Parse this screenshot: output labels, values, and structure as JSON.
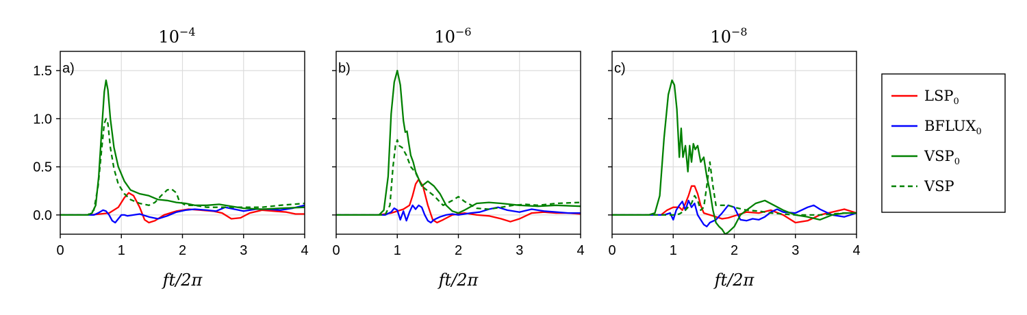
{
  "colors": {
    "LSP0": "#ff0000",
    "BFLUX0": "#0000ff",
    "VSP0": "#008000",
    "VSP": "#008000"
  },
  "legend": {
    "entries": [
      {
        "key": "LSP0",
        "base": "LSP",
        "sub": "0",
        "style": "solid"
      },
      {
        "key": "BFLUX0",
        "base": "BFLUX",
        "sub": "0",
        "style": "solid"
      },
      {
        "key": "VSP0",
        "base": "VSP",
        "sub": "0",
        "style": "solid"
      },
      {
        "key": "VSP",
        "base": "VSP",
        "sub": "",
        "style": "dashed"
      }
    ]
  },
  "chart_data": [
    {
      "type": "line",
      "panel_label": "a)",
      "title": "10",
      "title_exponent": "−4",
      "xlabel": "ft/2π",
      "ylabel": "",
      "xlim": [
        0,
        4
      ],
      "ylim": [
        -0.2,
        1.7
      ],
      "xticks": [
        "0",
        "1",
        "2",
        "3",
        "4"
      ],
      "yticks": [
        "0.0",
        "0.5",
        "1.0",
        "1.5"
      ],
      "grid": true,
      "series": [
        {
          "key": "LSP0",
          "x": [
            0,
            0.5,
            0.8,
            0.95,
            1.05,
            1.12,
            1.2,
            1.3,
            1.38,
            1.45,
            1.55,
            1.7,
            1.9,
            2.1,
            2.3,
            2.5,
            2.65,
            2.8,
            2.95,
            3.1,
            3.3,
            3.5,
            3.7,
            3.85,
            4.0
          ],
          "y": [
            0,
            0,
            0.02,
            0.08,
            0.18,
            0.23,
            0.2,
            0.08,
            -0.05,
            -0.08,
            -0.06,
            0.0,
            0.04,
            0.06,
            0.05,
            0.04,
            0.02,
            -0.04,
            -0.03,
            0.02,
            0.05,
            0.04,
            0.03,
            0.01,
            0.01
          ]
        },
        {
          "key": "BFLUX0",
          "x": [
            0,
            0.55,
            0.62,
            0.7,
            0.75,
            0.8,
            0.85,
            0.9,
            0.95,
            1.0,
            1.05,
            1.1,
            1.2,
            1.3,
            1.45,
            1.6,
            1.75,
            1.9,
            2.05,
            2.2,
            2.4,
            2.55,
            2.7,
            2.85,
            3.0,
            3.2,
            3.4,
            3.6,
            3.8,
            4.0
          ],
          "y": [
            0,
            0,
            0.02,
            0.05,
            0.04,
            0.0,
            -0.06,
            -0.08,
            -0.04,
            0.0,
            0.0,
            -0.01,
            0.0,
            0.01,
            -0.02,
            -0.04,
            -0.01,
            0.03,
            0.05,
            0.06,
            0.05,
            0.04,
            0.08,
            0.06,
            0.04,
            0.06,
            0.06,
            0.05,
            0.07,
            0.1
          ]
        },
        {
          "key": "VSP0",
          "x": [
            0,
            0.45,
            0.52,
            0.58,
            0.63,
            0.68,
            0.72,
            0.75,
            0.78,
            0.82,
            0.88,
            0.95,
            1.05,
            1.15,
            1.3,
            1.45,
            1.6,
            1.75,
            1.9,
            2.05,
            2.2,
            2.4,
            2.6,
            2.8,
            3.0,
            3.3,
            3.6,
            4.0
          ],
          "y": [
            0,
            0.0,
            0.02,
            0.1,
            0.4,
            0.9,
            1.28,
            1.4,
            1.3,
            1.0,
            0.7,
            0.5,
            0.35,
            0.26,
            0.22,
            0.2,
            0.16,
            0.15,
            0.13,
            0.12,
            0.1,
            0.1,
            0.11,
            0.09,
            0.07,
            0.06,
            0.07,
            0.08
          ]
        },
        {
          "key": "VSP",
          "x": [
            0,
            0.45,
            0.55,
            0.62,
            0.68,
            0.72,
            0.75,
            0.78,
            0.82,
            0.88,
            0.95,
            1.05,
            1.15,
            1.3,
            1.45,
            1.55,
            1.65,
            1.75,
            1.82,
            1.9,
            1.95,
            2.05,
            2.2,
            2.4,
            2.6,
            2.8,
            3.0,
            3.3,
            3.6,
            4.0
          ],
          "y": [
            0,
            0.0,
            0.05,
            0.3,
            0.7,
            0.95,
            1.0,
            0.95,
            0.7,
            0.48,
            0.32,
            0.22,
            0.16,
            0.12,
            0.1,
            0.13,
            0.2,
            0.26,
            0.27,
            0.23,
            0.14,
            0.1,
            0.1,
            0.08,
            0.08,
            0.08,
            0.08,
            0.08,
            0.1,
            0.12
          ]
        }
      ]
    },
    {
      "type": "line",
      "panel_label": "b)",
      "title": "10",
      "title_exponent": "−6",
      "xlabel": "ft/2π",
      "ylabel": "",
      "xlim": [
        0,
        4
      ],
      "ylim": [
        -0.2,
        1.7
      ],
      "xticks": [
        "0",
        "1",
        "2",
        "3",
        "4"
      ],
      "yticks": [],
      "grid": true,
      "series": [
        {
          "key": "LSP0",
          "x": [
            0,
            0.7,
            0.9,
            1.0,
            1.1,
            1.2,
            1.25,
            1.3,
            1.35,
            1.42,
            1.5,
            1.58,
            1.65,
            1.75,
            1.9,
            2.1,
            2.3,
            2.5,
            2.7,
            2.85,
            3.0,
            3.2,
            3.4,
            3.6,
            3.8,
            4.0
          ],
          "y": [
            0,
            0,
            0.02,
            0.04,
            0.06,
            0.1,
            0.2,
            0.32,
            0.37,
            0.3,
            0.1,
            -0.05,
            -0.08,
            -0.05,
            0.0,
            0.02,
            0.0,
            -0.01,
            -0.04,
            -0.07,
            -0.04,
            0.02,
            0.03,
            0.02,
            0.02,
            0.01
          ]
        },
        {
          "key": "BFLUX0",
          "x": [
            0,
            0.8,
            0.9,
            0.95,
            1.0,
            1.05,
            1.1,
            1.15,
            1.2,
            1.25,
            1.3,
            1.35,
            1.4,
            1.45,
            1.5,
            1.55,
            1.6,
            1.7,
            1.8,
            1.9,
            2.0,
            2.1,
            2.2,
            2.35,
            2.5,
            2.65,
            2.8,
            3.0,
            3.2,
            3.4,
            3.6,
            3.8,
            4.0
          ],
          "y": [
            0,
            0,
            0.03,
            0.07,
            0.05,
            -0.05,
            0.04,
            -0.06,
            0.03,
            0.1,
            0.06,
            0.1,
            0.08,
            0.0,
            -0.06,
            -0.08,
            -0.05,
            -0.02,
            0.0,
            0.01,
            0.0,
            0.01,
            0.02,
            0.03,
            0.06,
            0.08,
            0.05,
            0.03,
            0.06,
            0.04,
            0.03,
            0.02,
            0.02
          ]
        },
        {
          "key": "VSP0",
          "x": [
            0,
            0.7,
            0.78,
            0.85,
            0.9,
            0.95,
            1.0,
            1.05,
            1.1,
            1.13,
            1.16,
            1.19,
            1.22,
            1.26,
            1.3,
            1.4,
            1.5,
            1.6,
            1.7,
            1.8,
            1.9,
            2.0,
            2.1,
            2.3,
            2.5,
            2.7,
            3.0,
            3.3,
            3.6,
            4.0
          ],
          "y": [
            0,
            0,
            0.05,
            0.4,
            1.05,
            1.38,
            1.5,
            1.35,
            0.98,
            0.86,
            0.87,
            0.74,
            0.62,
            0.55,
            0.45,
            0.3,
            0.35,
            0.3,
            0.22,
            0.1,
            0.04,
            0.02,
            0.05,
            0.12,
            0.13,
            0.12,
            0.1,
            0.09,
            0.1,
            0.09
          ]
        },
        {
          "key": "VSP",
          "x": [
            0,
            0.8,
            0.88,
            0.93,
            0.97,
            1.0,
            1.03,
            1.08,
            1.15,
            1.22,
            1.3,
            1.4,
            1.5,
            1.6,
            1.75,
            1.9,
            2.0,
            2.1,
            2.3,
            2.5,
            2.7,
            2.9,
            3.1,
            3.3,
            3.6,
            4.0
          ],
          "y": [
            0,
            0,
            0.1,
            0.5,
            0.72,
            0.78,
            0.72,
            0.7,
            0.62,
            0.5,
            0.44,
            0.3,
            0.25,
            0.2,
            0.1,
            0.15,
            0.19,
            0.14,
            0.07,
            0.06,
            0.08,
            0.1,
            0.11,
            0.1,
            0.12,
            0.13
          ]
        }
      ]
    },
    {
      "type": "line",
      "panel_label": "c)",
      "title": "10",
      "title_exponent": "−8",
      "xlabel": "ft/2π",
      "ylabel": "",
      "xlim": [
        0,
        4
      ],
      "ylim": [
        -0.2,
        1.7
      ],
      "xticks": [
        "0",
        "1",
        "2",
        "3",
        "4"
      ],
      "yticks": [],
      "grid": true,
      "series": [
        {
          "key": "LSP0",
          "x": [
            0,
            0.8,
            0.9,
            1.0,
            1.1,
            1.15,
            1.2,
            1.25,
            1.3,
            1.35,
            1.4,
            1.45,
            1.5,
            1.6,
            1.7,
            1.8,
            1.9,
            2.0,
            2.2,
            2.4,
            2.6,
            2.8,
            3.0,
            3.2,
            3.4,
            3.6,
            3.8,
            4.0
          ],
          "y": [
            0,
            0,
            0.05,
            0.08,
            0.08,
            0.05,
            0.12,
            0.2,
            0.3,
            0.3,
            0.22,
            0.1,
            0.02,
            0.0,
            -0.02,
            -0.04,
            -0.03,
            -0.01,
            0.03,
            0.02,
            0.05,
            0.0,
            -0.08,
            -0.06,
            0.0,
            0.03,
            0.06,
            0.02
          ]
        },
        {
          "key": "BFLUX0",
          "x": [
            0,
            0.85,
            0.95,
            1.0,
            1.05,
            1.1,
            1.15,
            1.2,
            1.25,
            1.3,
            1.35,
            1.4,
            1.45,
            1.5,
            1.55,
            1.6,
            1.7,
            1.8,
            1.9,
            2.0,
            2.1,
            2.2,
            2.3,
            2.4,
            2.5,
            2.6,
            2.7,
            2.8,
            3.0,
            3.2,
            3.3,
            3.4,
            3.6,
            3.8,
            4.0
          ],
          "y": [
            0,
            0,
            0.02,
            -0.05,
            0.05,
            0.1,
            0.14,
            0.05,
            0.15,
            0.08,
            0.12,
            0.0,
            -0.05,
            -0.1,
            -0.12,
            -0.08,
            -0.05,
            0.02,
            0.1,
            0.08,
            -0.05,
            -0.06,
            -0.04,
            -0.05,
            -0.02,
            0.03,
            0.06,
            0.03,
            0.02,
            0.08,
            0.1,
            0.06,
            0.0,
            -0.02,
            0.02
          ]
        },
        {
          "key": "VSP0",
          "x": [
            0,
            0.6,
            0.7,
            0.78,
            0.85,
            0.92,
            0.98,
            1.02,
            1.06,
            1.1,
            1.13,
            1.16,
            1.2,
            1.24,
            1.27,
            1.3,
            1.33,
            1.36,
            1.4,
            1.45,
            1.5,
            1.55,
            1.6,
            1.65,
            1.7,
            1.75,
            1.8,
            1.85,
            1.9,
            2.0,
            2.1,
            2.2,
            2.35,
            2.5,
            2.65,
            2.8,
            3.0,
            3.2,
            3.4,
            3.6,
            3.8,
            4.0
          ],
          "y": [
            0,
            0,
            0.02,
            0.2,
            0.8,
            1.25,
            1.4,
            1.35,
            1.1,
            0.6,
            0.9,
            0.6,
            0.72,
            0.45,
            0.72,
            0.55,
            0.74,
            0.68,
            0.72,
            0.55,
            0.6,
            0.4,
            0.25,
            0.05,
            -0.08,
            -0.12,
            -0.15,
            -0.2,
            -0.18,
            -0.12,
            0.0,
            0.05,
            0.12,
            0.15,
            0.1,
            0.05,
            0.0,
            -0.02,
            -0.05,
            0.0,
            0.02,
            0.02
          ]
        },
        {
          "key": "VSP",
          "x": [
            0,
            1.0,
            1.1,
            1.2,
            1.3,
            1.35,
            1.4,
            1.45,
            1.5,
            1.55,
            1.6,
            1.65,
            1.7,
            1.8,
            1.9,
            2.0,
            2.2,
            2.4,
            2.6,
            2.8,
            3.0,
            3.2,
            3.4,
            3.6,
            3.8,
            4.0
          ],
          "y": [
            0,
            0,
            0.01,
            0.05,
            0.12,
            0.2,
            0.15,
            0.05,
            0.08,
            0.3,
            0.55,
            0.3,
            0.1,
            0.1,
            0.1,
            0.08,
            0.05,
            0.04,
            0.02,
            0.01,
            0.0,
            0.0,
            0.0,
            0.01,
            0.02,
            0.02
          ]
        }
      ]
    }
  ]
}
